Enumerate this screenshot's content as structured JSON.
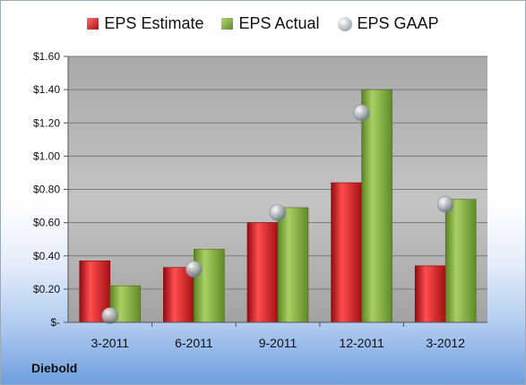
{
  "company": "Diebold",
  "legend": {
    "estimate": "EPS Estimate",
    "actual": "EPS Actual",
    "gaap": "EPS GAAP"
  },
  "colors": {
    "estimate": "#c8161b",
    "actual": "#7aa33a",
    "gaap": "#aab1bb",
    "plot_bg": "#b4b4b4"
  },
  "chart_data": {
    "type": "bar",
    "categories": [
      "3-2011",
      "6-2011",
      "9-2011",
      "12-2011",
      "3-2012"
    ],
    "series": [
      {
        "name": "EPS Estimate",
        "values": [
          0.37,
          0.33,
          0.6,
          0.84,
          0.34
        ]
      },
      {
        "name": "EPS Actual",
        "values": [
          0.22,
          0.44,
          0.69,
          1.4,
          0.74
        ]
      },
      {
        "name": "EPS GAAP",
        "type": "scatter",
        "values": [
          0.04,
          0.32,
          0.66,
          1.26,
          0.71
        ]
      }
    ],
    "ylim": [
      0,
      1.6
    ],
    "yticks": [
      0,
      0.2,
      0.4,
      0.6,
      0.8,
      1.0,
      1.2,
      1.4,
      1.6
    ],
    "ytick_labels": [
      "$-",
      "$0.20",
      "$0.40",
      "$0.60",
      "$0.80",
      "$1.00",
      "$1.20",
      "$1.40",
      "$1.60"
    ],
    "grid": true,
    "legend_position": "top"
  }
}
